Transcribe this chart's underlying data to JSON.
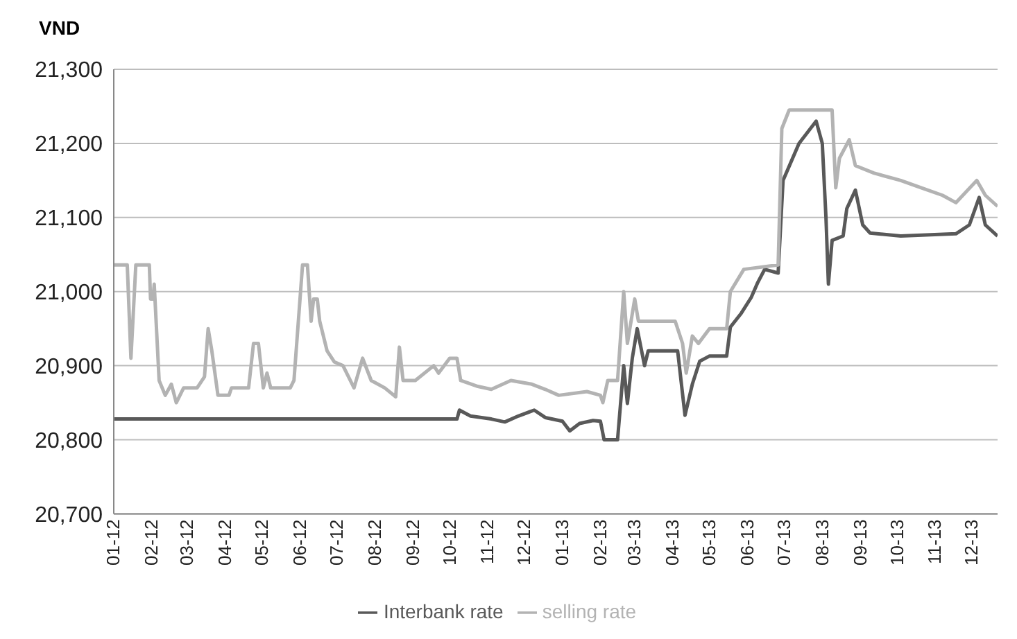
{
  "chart_data": {
    "type": "line",
    "ylabel": "VND",
    "ylim": [
      20700,
      21300
    ],
    "yticks": [
      {
        "value": 20700,
        "label": "20,700"
      },
      {
        "value": 20800,
        "label": "20,800"
      },
      {
        "value": 20900,
        "label": "20,900"
      },
      {
        "value": 21000,
        "label": "21,000"
      },
      {
        "value": 21100,
        "label": "21,100"
      },
      {
        "value": 21200,
        "label": "21,200"
      },
      {
        "value": 21300,
        "label": "21,300"
      }
    ],
    "grid": "y",
    "legend": "bottom",
    "marker": "none",
    "line_style": "solid",
    "xlim": [
      "2012-01-01",
      "2013-12-22"
    ],
    "xticks": [
      {
        "value": "2012-01-01",
        "label": "01-12"
      },
      {
        "value": "2012-02-01",
        "label": "02-12"
      },
      {
        "value": "2012-03-01",
        "label": "03-12"
      },
      {
        "value": "2012-04-01",
        "label": "04-12"
      },
      {
        "value": "2012-05-01",
        "label": "05-12"
      },
      {
        "value": "2012-06-01",
        "label": "06-12"
      },
      {
        "value": "2012-07-01",
        "label": "07-12"
      },
      {
        "value": "2012-08-01",
        "label": "08-12"
      },
      {
        "value": "2012-09-01",
        "label": "09-12"
      },
      {
        "value": "2012-10-01",
        "label": "10-12"
      },
      {
        "value": "2012-11-01",
        "label": "11-12"
      },
      {
        "value": "2012-12-01",
        "label": "12-12"
      },
      {
        "value": "2013-01-01",
        "label": "01-13"
      },
      {
        "value": "2013-02-01",
        "label": "02-13"
      },
      {
        "value": "2013-03-01",
        "label": "03-13"
      },
      {
        "value": "2013-04-01",
        "label": "04-13"
      },
      {
        "value": "2013-05-01",
        "label": "05-13"
      },
      {
        "value": "2013-06-01",
        "label": "06-13"
      },
      {
        "value": "2013-07-01",
        "label": "07-13"
      },
      {
        "value": "2013-08-01",
        "label": "08-13"
      },
      {
        "value": "2013-09-01",
        "label": "09-13"
      },
      {
        "value": "2013-10-01",
        "label": "10-13"
      },
      {
        "value": "2013-11-01",
        "label": "11-13"
      },
      {
        "value": "2013-12-01",
        "label": "12-13"
      }
    ],
    "series": [
      {
        "name": "Interbank rate",
        "color": "#595959",
        "x": [
          "2012-01-01",
          "2012-10-07",
          "2012-10-09",
          "2012-10-18",
          "2012-11-04",
          "2012-11-15",
          "2012-11-26",
          "2012-12-09",
          "2012-12-18",
          "2013-01-01",
          "2013-01-07",
          "2013-01-15",
          "2013-01-26",
          "2013-02-01",
          "2013-02-04",
          "2013-02-15",
          "2013-02-20",
          "2013-02-23",
          "2013-02-27",
          "2013-03-03",
          "2013-03-09",
          "2013-03-12",
          "2013-04-05",
          "2013-04-11",
          "2013-04-17",
          "2013-04-23",
          "2013-05-01",
          "2013-05-15",
          "2013-05-18",
          "2013-05-27",
          "2013-06-04",
          "2013-06-09",
          "2013-06-15",
          "2013-06-26",
          "2013-06-30",
          "2013-07-13",
          "2013-07-27",
          "2013-08-01",
          "2013-08-04",
          "2013-08-06",
          "2013-08-09",
          "2013-08-18",
          "2013-08-21",
          "2013-08-28",
          "2013-09-03",
          "2013-09-09",
          "2013-10-04",
          "2013-11-18",
          "2013-11-29",
          "2013-12-07",
          "2013-12-12",
          "2013-12-22"
        ],
        "values": [
          20828,
          20828,
          20840,
          20832,
          20828,
          20824,
          20832,
          20840,
          20830,
          20825,
          20812,
          20822,
          20826,
          20825,
          20800,
          20800,
          20900,
          20849,
          20910,
          20950,
          20900,
          20920,
          20920,
          20833,
          20875,
          20906,
          20913,
          20913,
          20952,
          20971,
          20992,
          21011,
          21030,
          21025,
          21150,
          21200,
          21230,
          21200,
          21100,
          21010,
          21069,
          21075,
          21112,
          21137,
          21090,
          21079,
          21075,
          21078,
          21090,
          21127,
          21090,
          21075
        ]
      },
      {
        "name": "selling rate",
        "color": "#b3b3b3",
        "x": [
          "2012-01-01",
          "2012-01-12",
          "2012-01-15",
          "2012-01-19",
          "2012-01-30",
          "2012-01-31",
          "2012-02-02",
          "2012-02-03",
          "2012-02-07",
          "2012-02-12",
          "2012-02-17",
          "2012-02-21",
          "2012-02-27",
          "2012-03-09",
          "2012-03-15",
          "2012-03-18",
          "2012-03-21",
          "2012-03-26",
          "2012-04-04",
          "2012-04-06",
          "2012-04-20",
          "2012-04-24",
          "2012-04-28",
          "2012-05-02",
          "2012-05-05",
          "2012-05-08",
          "2012-05-24",
          "2012-05-27",
          "2012-06-03",
          "2012-06-07",
          "2012-06-10",
          "2012-06-12",
          "2012-06-15",
          "2012-06-17",
          "2012-06-23",
          "2012-06-29",
          "2012-07-06",
          "2012-07-15",
          "2012-07-22",
          "2012-07-29",
          "2012-08-09",
          "2012-08-18",
          "2012-08-21",
          "2012-08-24",
          "2012-09-03",
          "2012-09-18",
          "2012-09-22",
          "2012-10-01",
          "2012-10-07",
          "2012-10-10",
          "2012-10-24",
          "2012-11-04",
          "2012-11-20",
          "2012-12-07",
          "2012-12-18",
          "2012-12-29",
          "2013-01-21",
          "2013-02-01",
          "2013-02-03",
          "2013-02-07",
          "2013-02-15",
          "2013-02-20",
          "2013-02-23",
          "2013-03-01",
          "2013-03-04",
          "2013-04-03",
          "2013-04-09",
          "2013-04-12",
          "2013-04-17",
          "2013-04-22",
          "2013-05-01",
          "2013-05-15",
          "2013-05-18",
          "2013-05-29",
          "2013-06-26",
          "2013-06-29",
          "2013-07-05",
          "2013-08-09",
          "2013-08-12",
          "2013-08-15",
          "2013-08-23",
          "2013-08-28",
          "2013-09-12",
          "2013-10-04",
          "2013-10-21",
          "2013-11-07",
          "2013-11-18",
          "2013-12-05",
          "2013-12-12",
          "2013-12-22"
        ],
        "values": [
          21036,
          21036,
          20910,
          21036,
          21036,
          20990,
          20990,
          21010,
          20880,
          20860,
          20875,
          20850,
          20870,
          20870,
          20885,
          20950,
          20920,
          20860,
          20860,
          20870,
          20870,
          20930,
          20930,
          20870,
          20890,
          20870,
          20870,
          20880,
          21036,
          21036,
          20960,
          20990,
          20990,
          20960,
          20920,
          20905,
          20900,
          20870,
          20910,
          20880,
          20870,
          20858,
          20925,
          20880,
          20880,
          20900,
          20890,
          20910,
          20910,
          20880,
          20872,
          20868,
          20880,
          20875,
          20868,
          20860,
          20865,
          20860,
          20850,
          20880,
          20880,
          21000,
          20930,
          20990,
          20960,
          20960,
          20930,
          20890,
          20940,
          20930,
          20950,
          20950,
          21000,
          21030,
          21036,
          21220,
          21245,
          21245,
          21140,
          21180,
          21205,
          21170,
          21160,
          21150,
          21140,
          21130,
          21120,
          21150,
          21130,
          21115
        ]
      }
    ]
  }
}
